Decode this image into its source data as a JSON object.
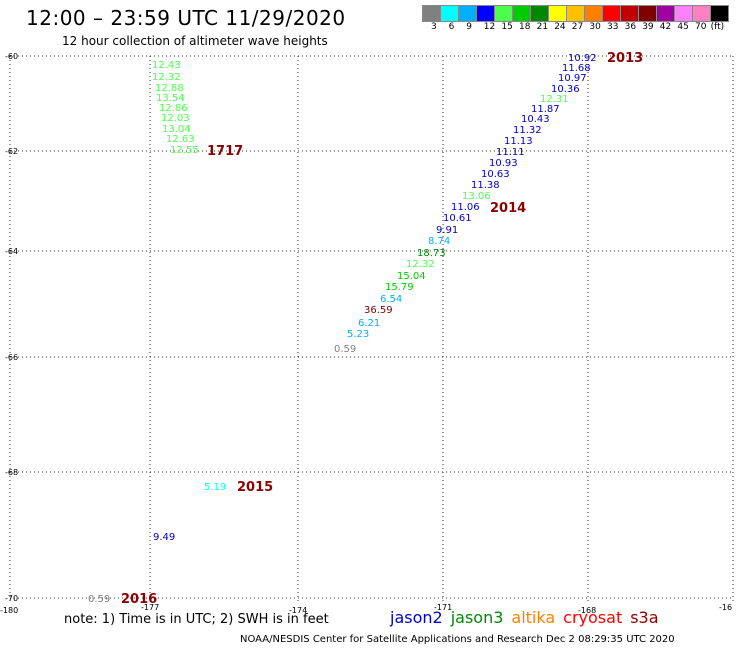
{
  "title": "12:00 – 23:59 UTC 11/29/2020",
  "subtitle": "12 hour collection of altimeter wave heights",
  "colorbar": {
    "colors": [
      "#808080",
      "#00ffff",
      "#00b0ff",
      "#0000ff",
      "#4cff4c",
      "#00cc00",
      "#008800",
      "#ffff00",
      "#ffc000",
      "#ff8000",
      "#ff0000",
      "#c00000",
      "#800000",
      "#a000a0",
      "#ff80ff",
      "#ff80c0",
      "#000000"
    ],
    "labels": [
      "3",
      "6",
      "9",
      "12",
      "15",
      "18",
      "21",
      "24",
      "27",
      "30",
      "33",
      "36",
      "39",
      "42",
      "45",
      "70",
      "(ft)"
    ]
  },
  "axes": {
    "lat_labels": [
      "-60",
      "-62",
      "-64",
      "-66",
      "-68",
      "-70"
    ],
    "lon_labels": [
      "-180",
      "-177",
      "-174",
      "-171",
      "-168",
      "-16"
    ]
  },
  "measurements": [
    {
      "text": "12.43",
      "color": "#4cff4c"
    },
    {
      "text": "12.32",
      "color": "#4cff4c"
    },
    {
      "text": "12.88",
      "color": "#4cff4c"
    },
    {
      "text": "13.54",
      "color": "#4cff4c"
    },
    {
      "text": "12.86",
      "color": "#4cff4c"
    },
    {
      "text": "12.03",
      "color": "#4cff4c"
    },
    {
      "text": "13.04",
      "color": "#4cff4c"
    },
    {
      "text": "12.63",
      "color": "#4cff4c"
    },
    {
      "text": "12.55",
      "color": "#4cff4c"
    },
    {
      "text": "10.92",
      "color": "#0000cc"
    },
    {
      "text": "11.68",
      "color": "#0000cc"
    },
    {
      "text": "10.97",
      "color": "#0000cc"
    },
    {
      "text": "10.36",
      "color": "#0000cc"
    },
    {
      "text": "12.31",
      "color": "#4cff4c"
    },
    {
      "text": "11.87",
      "color": "#0000cc"
    },
    {
      "text": "10.43",
      "color": "#0000cc"
    },
    {
      "text": "11.32",
      "color": "#0000cc"
    },
    {
      "text": "11.13",
      "color": "#0000cc"
    },
    {
      "text": "11.11",
      "color": "#0000cc"
    },
    {
      "text": "10.93",
      "color": "#0000cc"
    },
    {
      "text": "10.63",
      "color": "#0000cc"
    },
    {
      "text": "11.38",
      "color": "#0000cc"
    },
    {
      "text": "13.06",
      "color": "#4cff4c"
    },
    {
      "text": "11.06",
      "color": "#0000cc"
    },
    {
      "text": "10.61",
      "color": "#0000cc"
    },
    {
      "text": "9.91",
      "color": "#0000cc"
    },
    {
      "text": "8.74",
      "color": "#00b0ff"
    },
    {
      "text": "18.73",
      "color": "#008800"
    },
    {
      "text": "12.32",
      "color": "#4cff4c"
    },
    {
      "text": "15.04",
      "color": "#00cc00"
    },
    {
      "text": "15.79",
      "color": "#00cc00"
    },
    {
      "text": "6.54",
      "color": "#00b0ff"
    },
    {
      "text": "36.59",
      "color": "#800000"
    },
    {
      "text": "6.21",
      "color": "#00b0ff"
    },
    {
      "text": "5.23",
      "color": "#00b0ff"
    },
    {
      "text": "0.59",
      "color": "#808080"
    },
    {
      "text": "5.19",
      "color": "#00ffff"
    },
    {
      "text": "9.49",
      "color": "#0000cc"
    },
    {
      "text": "0.59",
      "color": "#808080"
    }
  ],
  "track_labels": [
    {
      "text": "1717",
      "color": "#ff0000"
    },
    {
      "text": "2013",
      "color": "#8b0000"
    },
    {
      "text": "2014",
      "color": "#8b0000"
    },
    {
      "text": "2015",
      "color": "#8b0000"
    },
    {
      "text": "2016",
      "color": "#8b0000"
    }
  ],
  "note": "note: 1) Time is in UTC; 2) SWH is in feet",
  "legend": [
    {
      "text": "jason2",
      "color": "#0000cc"
    },
    {
      "text": "jason3",
      "color": "#008800"
    },
    {
      "text": "altika",
      "color": "#ff8000"
    },
    {
      "text": "cryosat",
      "color": "#ff0000"
    },
    {
      "text": "s3a",
      "color": "#8b0000"
    }
  ],
  "credit": "NOAA/NESDIS Center for Satellite Applications and Research   Dec  2 08:29:35 UTC 2020"
}
